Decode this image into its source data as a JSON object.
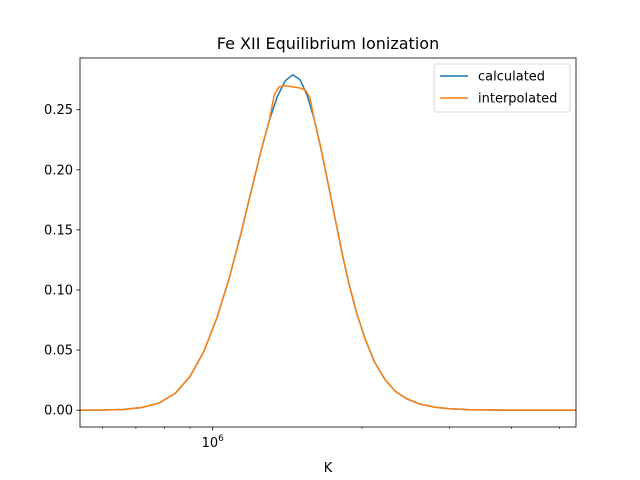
{
  "chart_data": {
    "type": "line",
    "title": "Fe XII Equilibrium Ionization",
    "xlabel": "K",
    "ylabel": "",
    "xscale": "log",
    "xlim": [
      540000,
      5400000
    ],
    "ylim": [
      -0.014,
      0.293
    ],
    "x_major_ticks": [
      1000000
    ],
    "x_major_tick_labels": [
      "10^6"
    ],
    "x_minor_ticks": [
      600000,
      700000,
      800000,
      900000,
      2000000,
      3000000,
      4000000,
      5000000
    ],
    "y_ticks": [
      0.0,
      0.05,
      0.1,
      0.15,
      0.2,
      0.25
    ],
    "y_tick_labels": [
      "0.00",
      "0.05",
      "0.10",
      "0.15",
      "0.20",
      "0.25"
    ],
    "grid": false,
    "legend": {
      "position": "top-right",
      "entries": [
        "calculated",
        "interpolated"
      ]
    },
    "series": [
      {
        "name": "calculated",
        "color": "#1f77b4",
        "x": [
          540000,
          600000,
          660000,
          720000,
          780000,
          840000,
          900000,
          960000,
          1020000,
          1080000,
          1140000,
          1200000,
          1250000,
          1300000,
          1350000,
          1400000,
          1450000,
          1500000,
          1550000,
          1600000,
          1650000,
          1700000,
          1760000,
          1820000,
          1880000,
          1950000,
          2030000,
          2120000,
          2220000,
          2330000,
          2460000,
          2620000,
          2800000,
          3000000,
          3300000,
          3700000,
          4200000,
          4800000,
          5400000
        ],
        "y": [
          0.0,
          0.0001,
          0.0006,
          0.0022,
          0.006,
          0.014,
          0.028,
          0.049,
          0.077,
          0.11,
          0.147,
          0.185,
          0.215,
          0.241,
          0.261,
          0.274,
          0.279,
          0.275,
          0.262,
          0.243,
          0.219,
          0.193,
          0.162,
          0.132,
          0.106,
          0.081,
          0.059,
          0.04,
          0.026,
          0.016,
          0.0095,
          0.005,
          0.0025,
          0.0012,
          0.0004,
          0.0001,
          0.0,
          0.0,
          0.0
        ]
      },
      {
        "name": "interpolated",
        "color": "#ff7f0e",
        "x": [
          540000,
          600000,
          660000,
          720000,
          780000,
          840000,
          900000,
          960000,
          1020000,
          1080000,
          1140000,
          1200000,
          1250000,
          1300000,
          1330000,
          1360000,
          1400000,
          1450000,
          1500000,
          1540000,
          1570000,
          1600000,
          1650000,
          1700000,
          1760000,
          1820000,
          1880000,
          1950000,
          2030000,
          2120000,
          2220000,
          2330000,
          2460000,
          2620000,
          2800000,
          3000000,
          3300000,
          3700000,
          4200000,
          4800000,
          5400000
        ],
        "y": [
          0.0,
          0.0001,
          0.0006,
          0.0022,
          0.006,
          0.014,
          0.028,
          0.049,
          0.077,
          0.11,
          0.147,
          0.185,
          0.215,
          0.241,
          0.262,
          0.269,
          0.27,
          0.269,
          0.268,
          0.266,
          0.26,
          0.243,
          0.219,
          0.193,
          0.162,
          0.132,
          0.106,
          0.081,
          0.059,
          0.04,
          0.026,
          0.016,
          0.0095,
          0.005,
          0.0025,
          0.0012,
          0.0004,
          0.0001,
          0.0,
          0.0,
          0.0
        ]
      }
    ]
  }
}
